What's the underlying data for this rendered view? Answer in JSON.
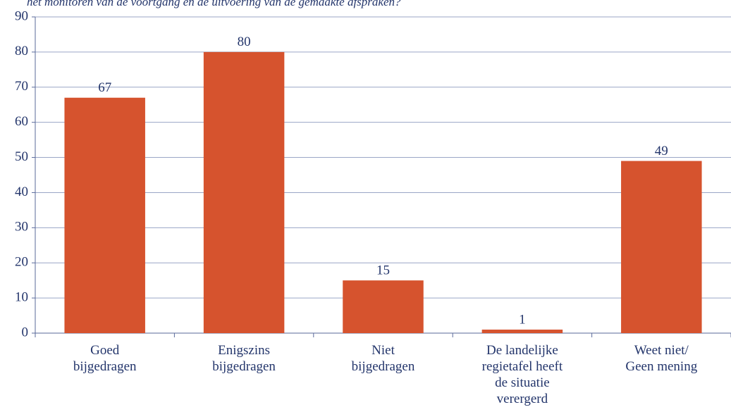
{
  "chart_data": {
    "type": "bar",
    "title": "het monitoren van de voortgang en de uitvoering van de gemaakte afspraken?",
    "categories": [
      "Goed\nbijgedragen",
      "Enigszins\nbijgedragen",
      "Niet\nbijgedragen",
      "De landelijke\nregietafel heeft\nde situatie\nverergerd",
      "Weet niet/\nGeen mening"
    ],
    "values": [
      67,
      80,
      15,
      1,
      49
    ],
    "color": "#d6532e",
    "ylim": [
      0,
      90
    ],
    "yticks": [
      0,
      10,
      20,
      30,
      40,
      50,
      60,
      70,
      80,
      90
    ],
    "grid": true
  }
}
